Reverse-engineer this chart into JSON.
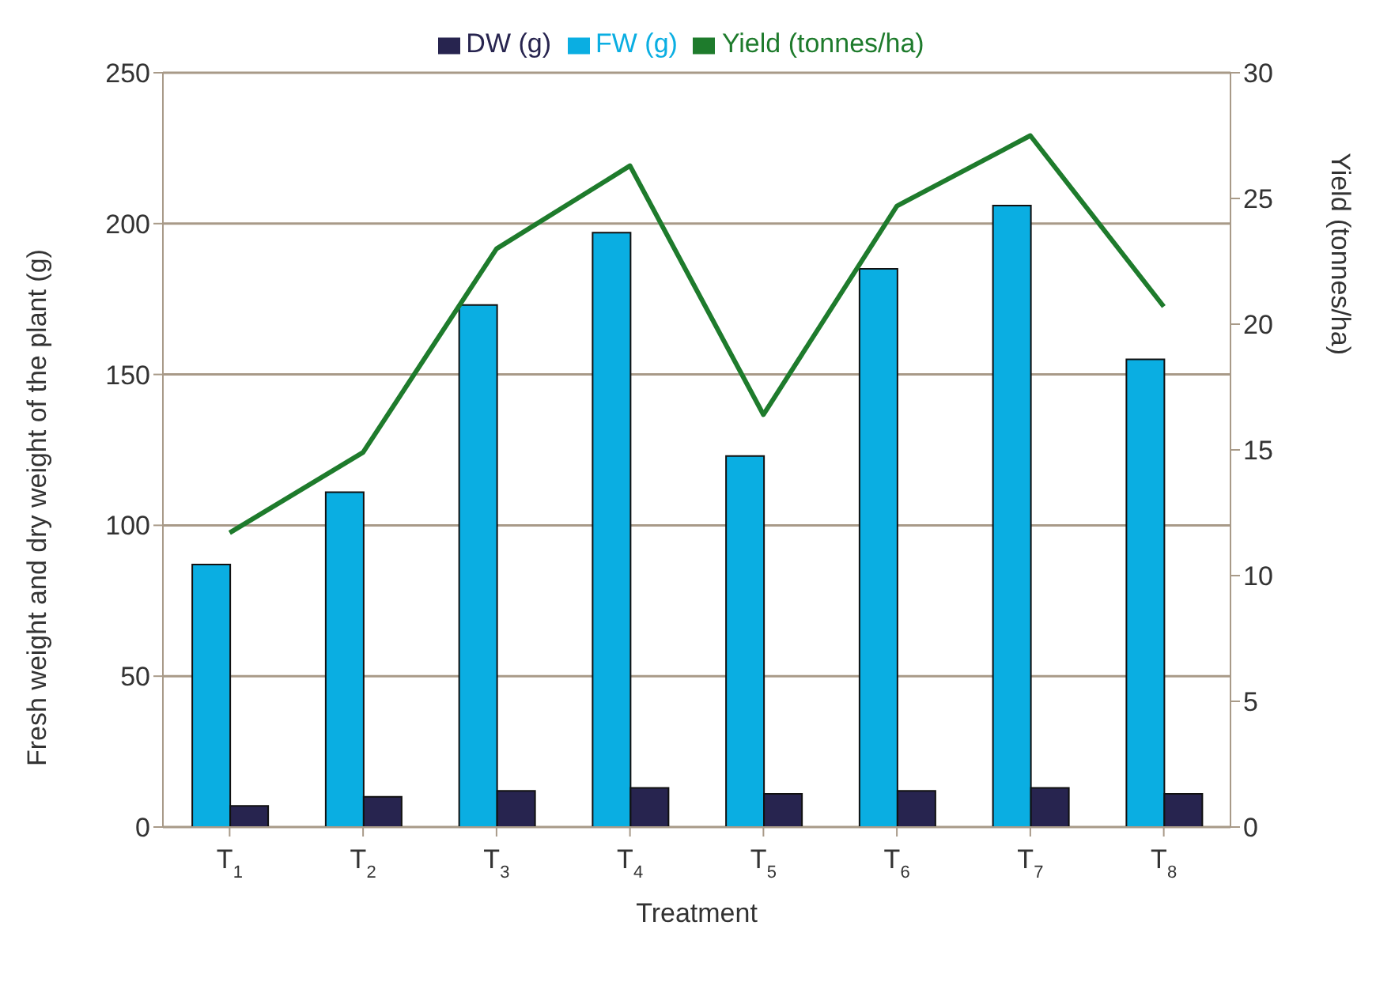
{
  "chart_data": {
    "type": "bar",
    "xlabel": "Treatment",
    "ylabel": "Fresh weight and dry weight of the plant (g)",
    "y2label": "Yield (tonnes/ha)",
    "categories": [
      "T$_{1}$",
      "T$_{2}$",
      "T$_{3}$",
      "T$_{4}$",
      "T$_{5}$",
      "T$_{6}$",
      "T$_{7}$",
      "T$_{8}$"
    ],
    "series": [
      {
        "name": "FW (g)",
        "color": "#0aaee2",
        "values": [
          87,
          111,
          173,
          197,
          123,
          185,
          206,
          155
        ]
      },
      {
        "name": "DW (g)",
        "color": "#27244f",
        "values": [
          7,
          10,
          12,
          13,
          11,
          12,
          13,
          11
        ]
      },
      {
        "name": "Yield (tonnes/ha)",
        "type": "line",
        "axis": "y2",
        "color": "#1e7b2c",
        "values": [
          11.7,
          14.9,
          23.0,
          26.3,
          16.4,
          24.7,
          27.5,
          20.7
        ]
      }
    ],
    "ylim": [
      0,
      250
    ],
    "yticks": [
      0,
      50,
      100,
      150,
      200,
      250
    ],
    "y2lim": [
      0,
      30
    ],
    "y2ticks": [
      0,
      5,
      10,
      15,
      20,
      25,
      30
    ],
    "grid": "y",
    "legend": "top",
    "marker": "none"
  }
}
